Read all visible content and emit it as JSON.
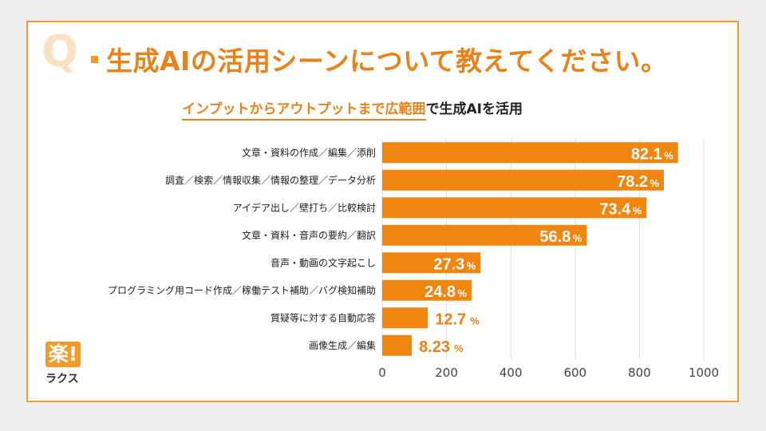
{
  "header": {
    "q_mark": "Q",
    "title": "生成AIの活用シーンについて教えてください。",
    "subtitle_highlight": "インプットからアウトプットまで広範囲",
    "subtitle_rest": "で生成AIを活用"
  },
  "logo": {
    "mark": "楽!",
    "name": "ラクス"
  },
  "colors": {
    "bar": "#f0850f",
    "accent": "#e8821a",
    "label_light": "#ffffff"
  },
  "chart_data": {
    "type": "bar",
    "orientation": "horizontal",
    "categories": [
      "文章・資料の作成／編集／添削",
      "調査／検索／情報収集／情報の整理／データ分析",
      "アイデア出し／壁打ち／比較検討",
      "文章・資料・音声の要約／翻訳",
      "音声・動画の文字起こし",
      "プログラミング用コード作成／稼働テスト補助／バグ検知補助",
      "質疑等に対する自動応答",
      "画像生成／編集"
    ],
    "values": [
      920,
      876,
      822,
      636,
      306,
      278,
      142,
      92
    ],
    "data_labels": [
      "82.1",
      "78.2",
      "73.4",
      "56.8",
      "27.3",
      "24.8",
      "12.7",
      "8.23"
    ],
    "label_unit": "%",
    "xlim": [
      0,
      1000
    ],
    "xticks": [
      "0",
      "200",
      "400",
      "600",
      "800",
      "1000"
    ],
    "grid": true
  }
}
